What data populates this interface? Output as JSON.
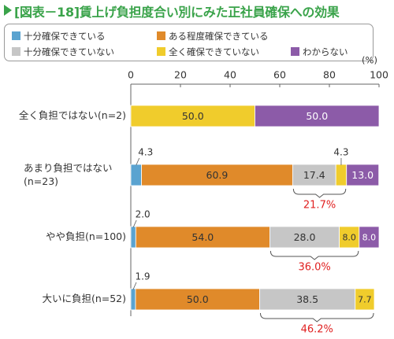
{
  "title": "[図表－18]賃上げ負担度合い別にみた正社員確保への効果",
  "chart_data": {
    "type": "bar",
    "orientation": "horizontal",
    "stacked": true,
    "unit": "(%)",
    "xlim": [
      0,
      100
    ],
    "xticks": [
      0,
      20,
      40,
      60,
      80,
      100
    ],
    "categories": [
      {
        "line1": "全く負担ではない(n=2)",
        "line2": ""
      },
      {
        "line1": "あまり負担ではない",
        "line2": "(n=23)"
      },
      {
        "line1": "やや負担(n=100)",
        "line2": ""
      },
      {
        "line1": "大いに負担(n=52)",
        "line2": ""
      }
    ],
    "series": [
      {
        "name": "十分確保できている",
        "color": "#5aa3d0",
        "values": [
          0,
          4.3,
          2.0,
          1.9
        ]
      },
      {
        "name": "ある程度確保できている",
        "color": "#e08a2a",
        "values": [
          0,
          60.9,
          54.0,
          50.0
        ]
      },
      {
        "name": "十分確保できていない",
        "color": "#c6c6c6",
        "values": [
          0,
          17.4,
          28.0,
          38.5
        ]
      },
      {
        "name": "全く確保できていない",
        "color": "#f0cc2c",
        "values": [
          50.0,
          4.3,
          8.0,
          7.7
        ]
      },
      {
        "name": "わからない",
        "color": "#8c5ba8",
        "values": [
          50.0,
          13.0,
          8.0,
          0
        ]
      }
    ],
    "brackets": [
      {
        "row": 1,
        "label": "21.7%"
      },
      {
        "row": 2,
        "label": "36.0%"
      },
      {
        "row": 3,
        "label": "46.2%"
      }
    ],
    "bracket_color": "#e02020",
    "grid": false,
    "legend_position": "top"
  }
}
